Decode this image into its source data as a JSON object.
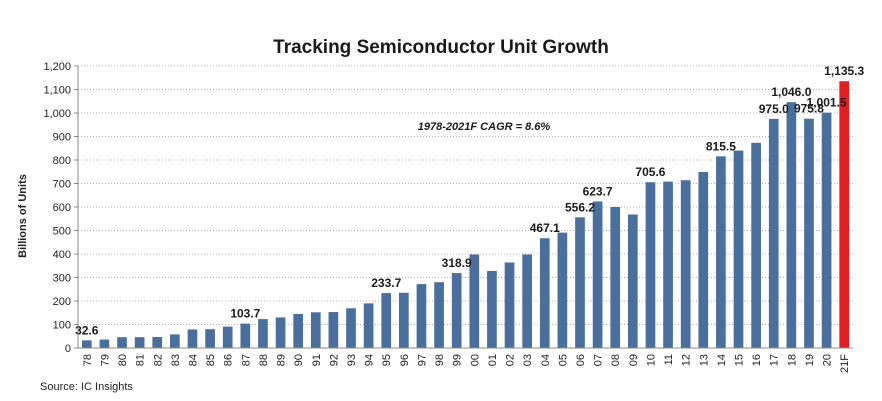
{
  "source": "Source:  IC Insights",
  "chart_data": {
    "type": "bar",
    "title": "Tracking Semiconductor Unit Growth",
    "xlabel": "",
    "ylabel": "Billions of Units",
    "ylim": [
      0,
      1200
    ],
    "yticks": [
      "0",
      "100",
      "200",
      "300",
      "400",
      "500",
      "600",
      "700",
      "800",
      "900",
      "1,000",
      "1,100",
      "1,200"
    ],
    "grid": true,
    "annotation": "1978-2021F CAGR = 8.6%",
    "bar_color": "#4a6f9c",
    "highlight_color": "#e02020",
    "highlight_index": 43,
    "categories": [
      "78",
      "79",
      "80",
      "81",
      "82",
      "83",
      "84",
      "85",
      "86",
      "87",
      "88",
      "89",
      "90",
      "91",
      "92",
      "93",
      "94",
      "95",
      "96",
      "97",
      "98",
      "99",
      "00",
      "01",
      "02",
      "03",
      "04",
      "05",
      "06",
      "07",
      "08",
      "09",
      "10",
      "11",
      "12",
      "13",
      "14",
      "15",
      "16",
      "17",
      "18",
      "19",
      "20",
      "21F"
    ],
    "values": [
      32.6,
      36,
      46,
      46,
      47,
      58,
      79,
      80,
      91,
      103.7,
      123,
      130,
      145,
      152,
      153,
      169,
      190,
      233.7,
      235,
      272,
      280,
      318.9,
      398,
      328,
      364,
      398,
      467.1,
      491,
      556.2,
      623.7,
      600,
      568,
      705.6,
      708,
      714,
      749,
      815.5,
      840,
      873,
      975.0,
      1046.0,
      975.8,
      1001.5,
      1135.3
    ],
    "data_labels": [
      {
        "index": 0,
        "text": "32.6"
      },
      {
        "index": 9,
        "text": "103.7"
      },
      {
        "index": 17,
        "text": "233.7"
      },
      {
        "index": 21,
        "text": "318.9"
      },
      {
        "index": 26,
        "text": "467.1"
      },
      {
        "index": 28,
        "text": "556.2"
      },
      {
        "index": 29,
        "text": "623.7"
      },
      {
        "index": 32,
        "text": "705.6"
      },
      {
        "index": 36,
        "text": "815.5"
      },
      {
        "index": 39,
        "text": "975.0"
      },
      {
        "index": 40,
        "text": "1,046.0"
      },
      {
        "index": 41,
        "text": "975.8"
      },
      {
        "index": 42,
        "text": "1,001.5"
      },
      {
        "index": 43,
        "text": "1,135.3"
      }
    ]
  }
}
